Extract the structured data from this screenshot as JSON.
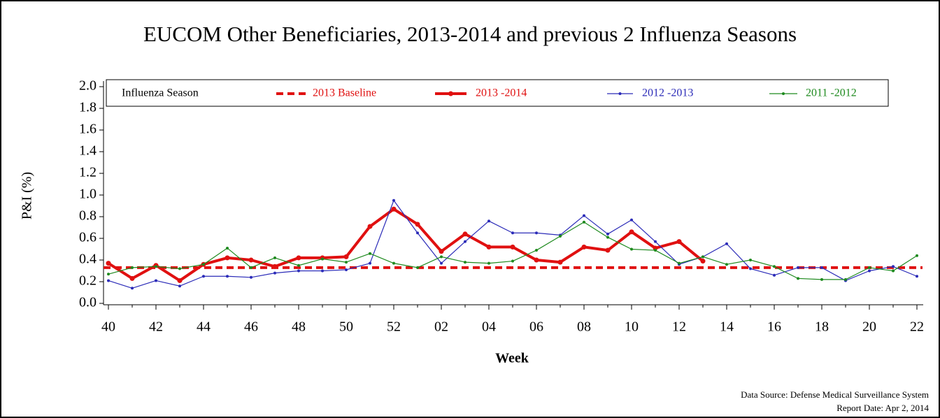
{
  "chart_data": {
    "type": "line",
    "title": "EUCOM Other Beneficiaries, 2013-2014 and previous 2 Influenza Seasons",
    "x_label": "Week",
    "y_label": "P&I (%)",
    "legend_title": "Influenza Season",
    "legend_position": "top",
    "source": "Data Source: Defense Medical Surveillance System",
    "report_date": "Report Date: Apr 2, 2014",
    "categories": [
      "40",
      null,
      "42",
      null,
      "44",
      null,
      "46",
      null,
      "48",
      null,
      "50",
      null,
      "52",
      null,
      "02",
      null,
      "04",
      null,
      "06",
      null,
      "08",
      null,
      "10",
      null,
      "12",
      null,
      "14",
      null,
      "16",
      null,
      "18",
      null,
      "20",
      null,
      "22"
    ],
    "ylim": [
      0,
      2
    ],
    "yticks": [
      {
        "value": 0,
        "label": "0.0"
      },
      0.2,
      0.4,
      0.6,
      0.8,
      {
        "value": 1,
        "label": "1.0"
      },
      1.2,
      1.4,
      1.6,
      1.8,
      {
        "value": 2,
        "label": "2.0"
      }
    ],
    "baseline": {
      "name": "2013 Baseline",
      "color": "#e01010",
      "value": 0.33
    },
    "series": [
      {
        "name": "2013 -2014",
        "color": "#e01010",
        "values": [
          0.37,
          0.23,
          0.35,
          0.21,
          0.36,
          0.42,
          0.4,
          0.34,
          0.42,
          0.42,
          0.43,
          0.71,
          0.87,
          0.73,
          0.48,
          0.64,
          0.52,
          0.52,
          0.4,
          0.38,
          0.52,
          0.49,
          0.66,
          0.51,
          0.57,
          0.39,
          null,
          null,
          null,
          null,
          null,
          null,
          null,
          null,
          null
        ]
      },
      {
        "name": "2012 -2013",
        "color": "#2b2bb8",
        "values": [
          0.21,
          0.14,
          0.21,
          0.16,
          0.25,
          0.25,
          0.24,
          0.28,
          0.3,
          0.3,
          0.31,
          0.37,
          0.95,
          0.65,
          0.37,
          0.57,
          0.76,
          0.65,
          0.65,
          0.63,
          0.81,
          0.64,
          0.77,
          0.57,
          0.36,
          0.43,
          0.55,
          0.32,
          0.26,
          0.33,
          0.33,
          0.21,
          0.3,
          0.34,
          0.25
        ]
      },
      {
        "name": "2011 -2012",
        "color": "#1e8a1e",
        "values": [
          0.27,
          0.33,
          0.34,
          0.32,
          0.36,
          0.51,
          0.33,
          0.42,
          0.35,
          0.41,
          0.38,
          0.46,
          0.37,
          0.33,
          0.43,
          0.38,
          0.37,
          0.39,
          0.49,
          0.62,
          0.75,
          0.61,
          0.5,
          0.49,
          0.37,
          0.43,
          0.36,
          0.4,
          0.34,
          0.23,
          0.22,
          0.22,
          0.33,
          0.3,
          0.44
        ]
      }
    ]
  }
}
